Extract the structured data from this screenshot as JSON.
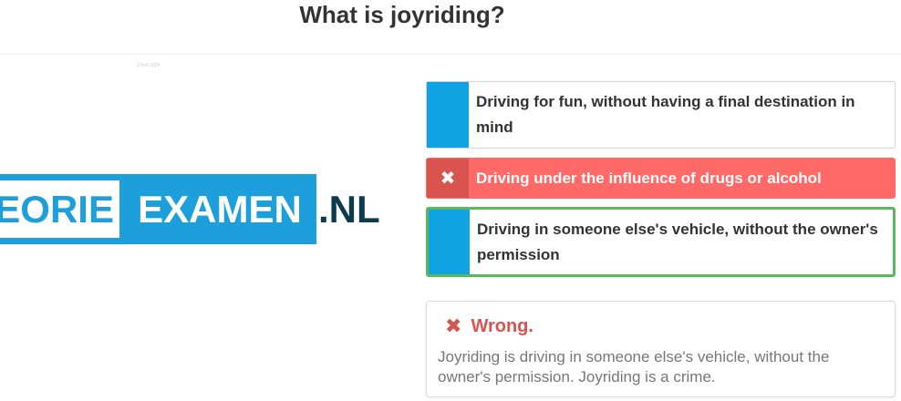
{
  "question": {
    "title": "What is joyriding?",
    "caption": "2 Feb 2024"
  },
  "logo": {
    "part1": "EORIE",
    "part2": "EXAMEN",
    "tld": ".NL",
    "brand_color": "#1d9fdb",
    "dark_color": "#0c3b4d"
  },
  "answers": [
    {
      "text": "Driving for fun, without having a final destination in mind",
      "mark": "",
      "state": "unselected"
    },
    {
      "text": "Driving under the influence of drugs or alcohol",
      "mark": "✖",
      "state": "wrong-selected"
    },
    {
      "text": "Driving in someone else's vehicle, without the owner's permission",
      "mark": "",
      "state": "correct"
    }
  ],
  "feedback": {
    "icon": "close-icon",
    "status": "Wrong.",
    "explanation": "Joyriding is driving in someone else's vehicle, without the owner's permission. Joyriding is a crime.",
    "status_color": "#d9534f",
    "correct_color": "#5cb85c",
    "wrong_bg_color": "#ff6a68"
  }
}
